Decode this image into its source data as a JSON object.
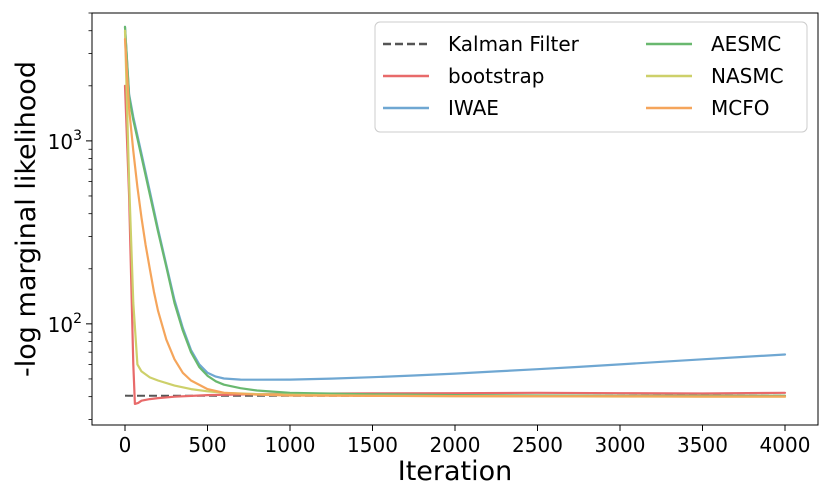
{
  "chart_data": {
    "type": "line",
    "title": "",
    "xlabel": "Iteration",
    "ylabel": "-log marginal likelihood",
    "yscale": "log",
    "xlim": [
      -200,
      4200
    ],
    "ylim": [
      28,
      5000
    ],
    "grid": false,
    "legend_position": "top-right",
    "legend_columns": 2,
    "x_ticks": [
      {
        "value": 0,
        "label": "0"
      },
      {
        "value": 500,
        "label": "500"
      },
      {
        "value": 1000,
        "label": "1000"
      },
      {
        "value": 1500,
        "label": "1500"
      },
      {
        "value": 2000,
        "label": "2000"
      },
      {
        "value": 2500,
        "label": "2500"
      },
      {
        "value": 3000,
        "label": "3000"
      },
      {
        "value": 3500,
        "label": "3500"
      },
      {
        "value": 4000,
        "label": "4000"
      }
    ],
    "y_ticks": [
      {
        "value": 100,
        "base": "10",
        "exp": "2"
      },
      {
        "value": 1000,
        "base": "10",
        "exp": "3"
      }
    ],
    "series": [
      {
        "name": "Kalman Filter",
        "color": "#555555",
        "dashed": true,
        "x": [
          0,
          4000
        ],
        "y": [
          40.5,
          40.5
        ]
      },
      {
        "name": "bootstrap",
        "color": "#e86a6a",
        "dashed": false,
        "x": [
          0,
          25,
          50,
          60,
          80,
          100,
          150,
          200,
          300,
          500,
          800,
          1000,
          1500,
          2000,
          2500,
          3000,
          3500,
          4000
        ],
        "y": [
          2000,
          500,
          60,
          36.5,
          37,
          38,
          38.8,
          39.3,
          40,
          40.8,
          41.3,
          41.5,
          41.7,
          41.8,
          42,
          41.8,
          41.6,
          42
        ]
      },
      {
        "name": "IWAE",
        "color": "#6fa7d2",
        "dashed": false,
        "x": [
          0,
          25,
          50,
          100,
          150,
          200,
          250,
          300,
          350,
          400,
          450,
          500,
          550,
          600,
          700,
          800,
          1000,
          1250,
          1500,
          1750,
          2000,
          2250,
          2500,
          2750,
          3000,
          3250,
          3500,
          3750,
          4000
        ],
        "y": [
          4200,
          1800,
          1350,
          850,
          530,
          330,
          210,
          135,
          95,
          72,
          60,
          54,
          51.5,
          50.3,
          49.6,
          49.5,
          49.6,
          50.2,
          51.1,
          52.2,
          53.5,
          55,
          56.5,
          58.2,
          60,
          62,
          64,
          66,
          68
        ]
      },
      {
        "name": "AESMC",
        "color": "#69b86f",
        "dashed": false,
        "x": [
          0,
          25,
          50,
          100,
          150,
          200,
          250,
          300,
          350,
          400,
          450,
          500,
          550,
          600,
          700,
          800,
          1000,
          1500,
          2000,
          2500,
          3000,
          3500,
          4000
        ],
        "y": [
          4200,
          1750,
          1300,
          820,
          510,
          320,
          205,
          130,
          92,
          70,
          58,
          52,
          48.5,
          46.5,
          44.5,
          43.2,
          42,
          41.2,
          40.8,
          40.6,
          40.5,
          40.5,
          40.5
        ]
      },
      {
        "name": "NASMC",
        "color": "#cdd06a",
        "dashed": false,
        "x": [
          0,
          25,
          50,
          75,
          100,
          150,
          200,
          300,
          400,
          500,
          600,
          800,
          1000,
          1500,
          2000,
          2500,
          3000,
          3500,
          4000
        ],
        "y": [
          4000,
          600,
          130,
          60,
          55,
          51,
          49,
          46,
          44,
          42.8,
          42,
          41.3,
          41,
          40.5,
          40.3,
          40.2,
          40.1,
          40,
          40
        ]
      },
      {
        "name": "MCFO",
        "color": "#f5a55b",
        "dashed": false,
        "x": [
          0,
          25,
          50,
          75,
          100,
          125,
          150,
          175,
          200,
          250,
          300,
          350,
          400,
          500,
          600,
          800,
          1000,
          1500,
          2000,
          2500,
          3000,
          3500,
          4000
        ],
        "y": [
          3600,
          1500,
          880,
          560,
          380,
          270,
          200,
          150,
          118,
          82,
          64,
          54,
          49,
          44,
          42,
          41,
          40.6,
          40.4,
          40.3,
          40.2,
          40.2,
          40.1,
          40.1
        ]
      }
    ]
  }
}
